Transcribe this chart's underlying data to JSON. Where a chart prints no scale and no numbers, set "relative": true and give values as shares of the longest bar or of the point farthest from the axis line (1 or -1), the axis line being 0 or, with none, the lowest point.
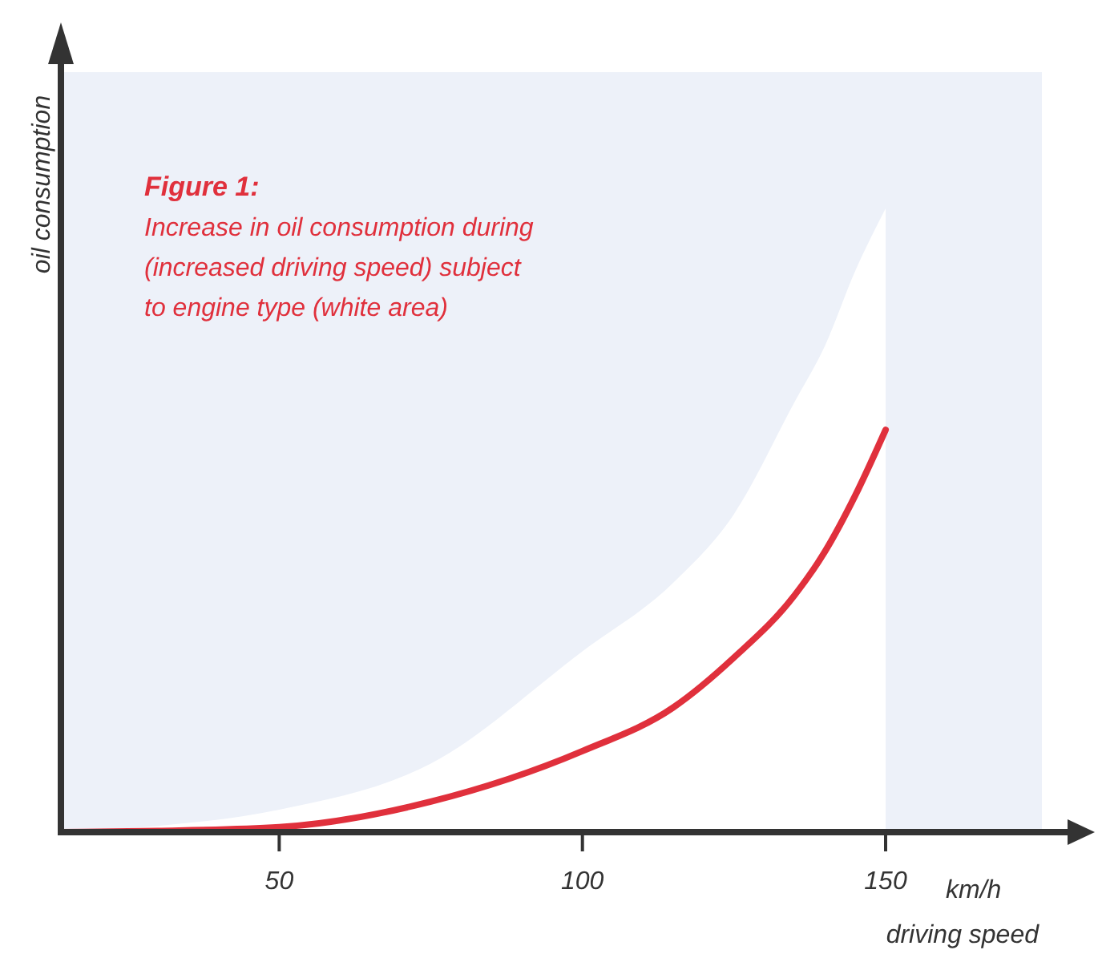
{
  "chart_data": {
    "type": "line",
    "title": "Figure 1:",
    "subtitle": "Increase in oil consumption during\n(increased driving speed) subject\nto engine type (white area)",
    "xlabel": "driving speed",
    "ylabel": "oil consumption",
    "annotations": [
      "km/h"
    ],
    "relative": true,
    "x": [
      14,
      30,
      50,
      75,
      100,
      115,
      125,
      135,
      140,
      145,
      150
    ],
    "xlim": [
      14,
      180
    ],
    "xticks": [
      50,
      100,
      150
    ],
    "series": [
      {
        "type": "area",
        "color": "#ffffff",
        "values": [
          0,
          0.01,
          0.036,
          0.11,
          0.29,
          0.4,
          0.51,
          0.69,
          0.78,
          0.9,
          1
        ]
      },
      {
        "color": "#e0303c",
        "values": [
          0,
          0.002,
          0.008,
          0.049,
          0.13,
          0.2,
          0.28,
          0.38,
          0.45,
          0.54,
          0.645
        ]
      }
    ],
    "grid": false
  }
}
